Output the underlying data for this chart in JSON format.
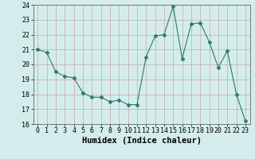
{
  "x": [
    0,
    1,
    2,
    3,
    4,
    5,
    6,
    7,
    8,
    9,
    10,
    11,
    12,
    13,
    14,
    15,
    16,
    17,
    18,
    19,
    20,
    21,
    22,
    23
  ],
  "y": [
    21.0,
    20.8,
    19.5,
    19.2,
    19.1,
    18.1,
    17.8,
    17.8,
    17.5,
    17.6,
    17.3,
    17.3,
    20.5,
    21.9,
    22.0,
    23.9,
    20.4,
    22.7,
    22.8,
    21.5,
    19.8,
    20.9,
    18.0,
    16.2
  ],
  "line_color": "#2d7a6a",
  "marker": "D",
  "marker_size": 2.5,
  "bg_color": "#d4edec",
  "grid_color": "#c8a8a8",
  "xlabel": "Humidex (Indice chaleur)",
  "ylim": [
    16,
    24
  ],
  "yticks": [
    16,
    17,
    18,
    19,
    20,
    21,
    22,
    23,
    24
  ],
  "xticks": [
    0,
    1,
    2,
    3,
    4,
    5,
    6,
    7,
    8,
    9,
    10,
    11,
    12,
    13,
    14,
    15,
    16,
    17,
    18,
    19,
    20,
    21,
    22,
    23
  ],
  "xlabel_fontsize": 7.5,
  "tick_fontsize": 6
}
